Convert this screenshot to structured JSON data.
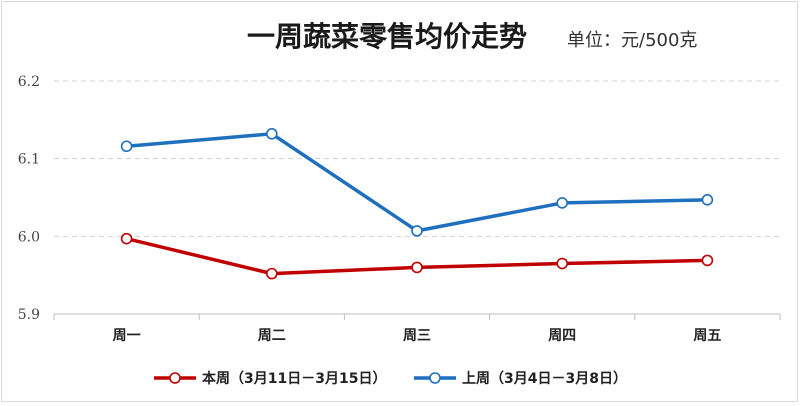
{
  "chart_data": {
    "type": "line",
    "title": "一周蔬菜零售均价走势",
    "unit_label": "单位：元/500克",
    "categories": [
      "周一",
      "周二",
      "周三",
      "周四",
      "周五"
    ],
    "y_ticks": [
      "5.9",
      "6.0",
      "6.1",
      "6.2"
    ],
    "ylim": [
      5.9,
      6.2
    ],
    "grid": true,
    "legend_position": "bottom",
    "series": [
      {
        "name": "本周（3月11日－3月15日）",
        "color": "#c00000",
        "values": [
          5.997,
          5.952,
          5.96,
          5.965,
          5.969
        ]
      },
      {
        "name": "上周（3月4日－3月8日）",
        "color": "#1f6fbf",
        "values": [
          6.116,
          6.132,
          6.007,
          6.043,
          6.047
        ]
      }
    ]
  }
}
